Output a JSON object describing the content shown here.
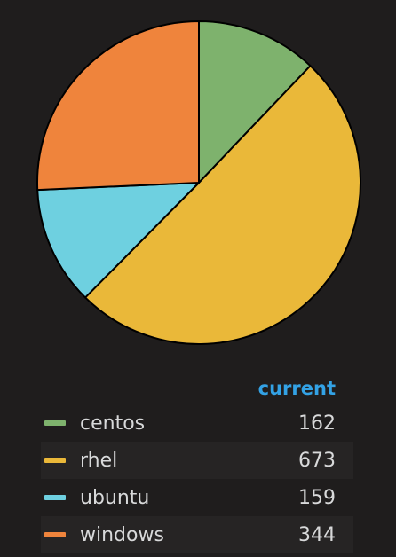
{
  "chart_data": {
    "type": "pie",
    "title": "",
    "legend_position": "bottom",
    "legend_value_header": "current",
    "slices": [
      {
        "name": "centos",
        "value": 162,
        "color": "#7eb26d"
      },
      {
        "name": "rhel",
        "value": 673,
        "color": "#eab839"
      },
      {
        "name": "ubuntu",
        "value": 159,
        "color": "#6ed0e0"
      },
      {
        "name": "windows",
        "value": 344,
        "color": "#ef843c"
      }
    ]
  },
  "theme": {
    "background": "#1f1d1d",
    "header_color": "#33a2e5",
    "text_color": "#d8d9da"
  }
}
